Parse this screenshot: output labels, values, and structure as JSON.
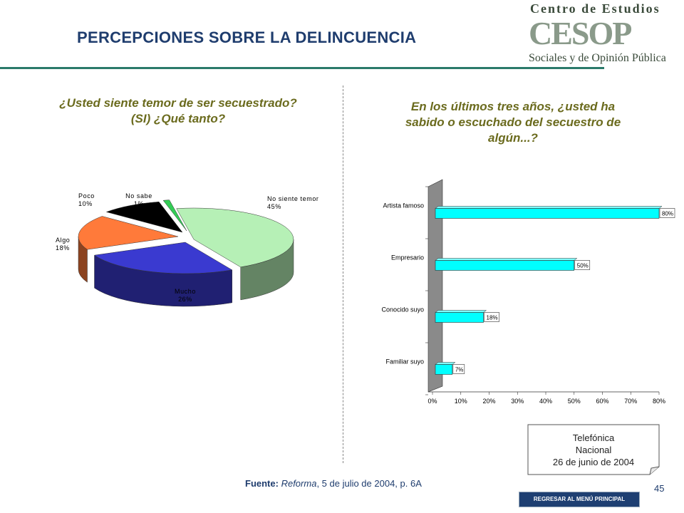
{
  "title": "PERCEPCIONES SOBRE LA DELINCUENCIA",
  "logo": {
    "line1": "Centro de Estudios",
    "mark": "CESOP",
    "line2": "Sociales y de Opinión Pública"
  },
  "colors": {
    "title": "#1f3d6e",
    "question": "#6b6b1e",
    "rule": "#2b7a6a",
    "bar_fill": "#00ffff"
  },
  "left_question": {
    "line1": "¿Usted siente temor de ser secuestrado?",
    "line2": "(SI) ¿Qué tanto?"
  },
  "right_question": {
    "line1": "En los últimos tres años, ¿usted ha",
    "line2": "sabido o escuchado del secuestro de",
    "line3": "algún...?"
  },
  "chart_data": [
    {
      "type": "pie",
      "slices": [
        {
          "name": "No siente temor",
          "value": 45,
          "label": "45%",
          "color": "#b6f0b6"
        },
        {
          "name": "Mucho",
          "value": 26,
          "label": "26%",
          "color": "#3a3ad0"
        },
        {
          "name": "Algo",
          "value": 18,
          "label": "18%",
          "color": "#ff7a3a"
        },
        {
          "name": "Poco",
          "value": 10,
          "label": "10%",
          "color": "#000000"
        },
        {
          "name": "No sabe",
          "value": 1,
          "label": "1%",
          "color": "#33cc55"
        }
      ]
    },
    {
      "type": "bar",
      "orientation": "horizontal",
      "categories": [
        "Artista famoso",
        "Empresario",
        "Conocido suyo",
        "Familiar suyo"
      ],
      "values": [
        80,
        50,
        18,
        7
      ],
      "value_labels": [
        "80%",
        "50%",
        "18%",
        "7%"
      ],
      "xlim": [
        0,
        80
      ],
      "xticks": [
        "0%",
        "10%",
        "20%",
        "30%",
        "40%",
        "50%",
        "60%",
        "70%",
        "80%"
      ]
    }
  ],
  "callout": {
    "line1": "Telefónica",
    "line2": "Nacional",
    "line3": "26 de junio de 2004"
  },
  "source": {
    "label": "Fuente:",
    "publication": "Reforma",
    "rest": ", 5 de julio de 2004, p. 6A"
  },
  "page_number": "45",
  "back_button": "REGRESAR AL MENÚ PRINCIPAL"
}
